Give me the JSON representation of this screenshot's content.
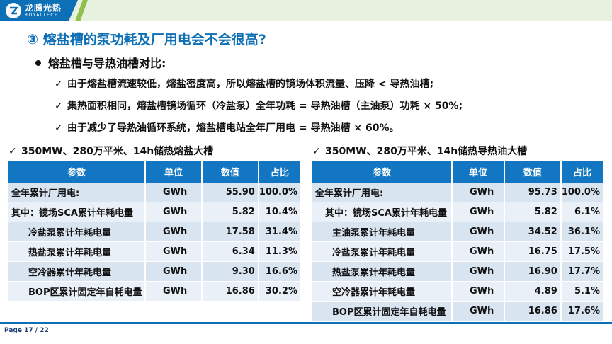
{
  "header": {
    "logo_cn": "龙腾光热",
    "logo_en": "ROYALTECH",
    "accent_blue": "#0d6fb5",
    "accent_green": "#8fc04c"
  },
  "title": "③  熔盐槽的泵功耗及厂用电会不会很高?",
  "subtitle": "熔盐槽与导热油槽对比:",
  "bullets": [
    "由于熔盐槽流速较低，熔盐密度高，所以熔盐槽的镜场体积流量、压降 < 导热油槽;",
    "集热面积相同，熔盐槽镜场循环（冷盐泵）全年功耗 = 导热油槽（主油泵）功耗 × 50%;",
    "由于减少了导热油循环系统，熔盐槽电站全年厂用电 = 导热油槽 × 60%。"
  ],
  "check_icon": "✓",
  "tables": {
    "left": {
      "title": "350MW、280万平米、14h储热熔盐大槽",
      "headers": [
        "参数",
        "单位",
        "数值",
        "占比"
      ],
      "rows": [
        {
          "name": "全年累计厂用电:",
          "unit": "GWh",
          "value": "55.90",
          "pct": "100.0%"
        },
        {
          "name": "其中：镜场SCA累计年耗电量",
          "unit": "GWh",
          "value": "5.82",
          "pct": "10.4%"
        },
        {
          "name": "冷盐泵累计年耗电量",
          "unit": "GWh",
          "value": "17.58",
          "pct": "31.4%"
        },
        {
          "name": "热盐泵累计年耗电量",
          "unit": "GWh",
          "value": "6.34",
          "pct": "11.3%"
        },
        {
          "name": "空冷器累计年耗电量",
          "unit": "GWh",
          "value": "9.30",
          "pct": "16.6%"
        },
        {
          "name": "BOP区累计固定年自耗电量",
          "unit": "GWh",
          "value": "16.86",
          "pct": "30.2%"
        }
      ]
    },
    "right": {
      "title": "350MW、280万平米、14h储热导热油大槽",
      "headers": [
        "参数",
        "单位",
        "数值",
        "占比"
      ],
      "rows": [
        {
          "name": "全年累计厂用电:",
          "unit": "GWh",
          "value": "95.73",
          "pct": "100.0%"
        },
        {
          "name": "其中：镜场SCA累计年耗电量",
          "unit": "GWh",
          "value": "5.82",
          "pct": "6.1%"
        },
        {
          "name": "主油泵累计年耗电量",
          "unit": "GWh",
          "value": "34.52",
          "pct": "36.1%"
        },
        {
          "name": "冷盐泵累计年耗电量",
          "unit": "GWh",
          "value": "16.75",
          "pct": "17.5%"
        },
        {
          "name": "热盐泵累计年耗电量",
          "unit": "GWh",
          "value": "16.90",
          "pct": "17.7%"
        },
        {
          "name": "空冷器累计年耗电量",
          "unit": "GWh",
          "value": "4.89",
          "pct": "5.1%"
        },
        {
          "name": "BOP区累计固定年自耗电量",
          "unit": "GWh",
          "value": "16.86",
          "pct": "17.6%"
        }
      ]
    }
  },
  "footer": {
    "page": "Page 17 / 22"
  }
}
